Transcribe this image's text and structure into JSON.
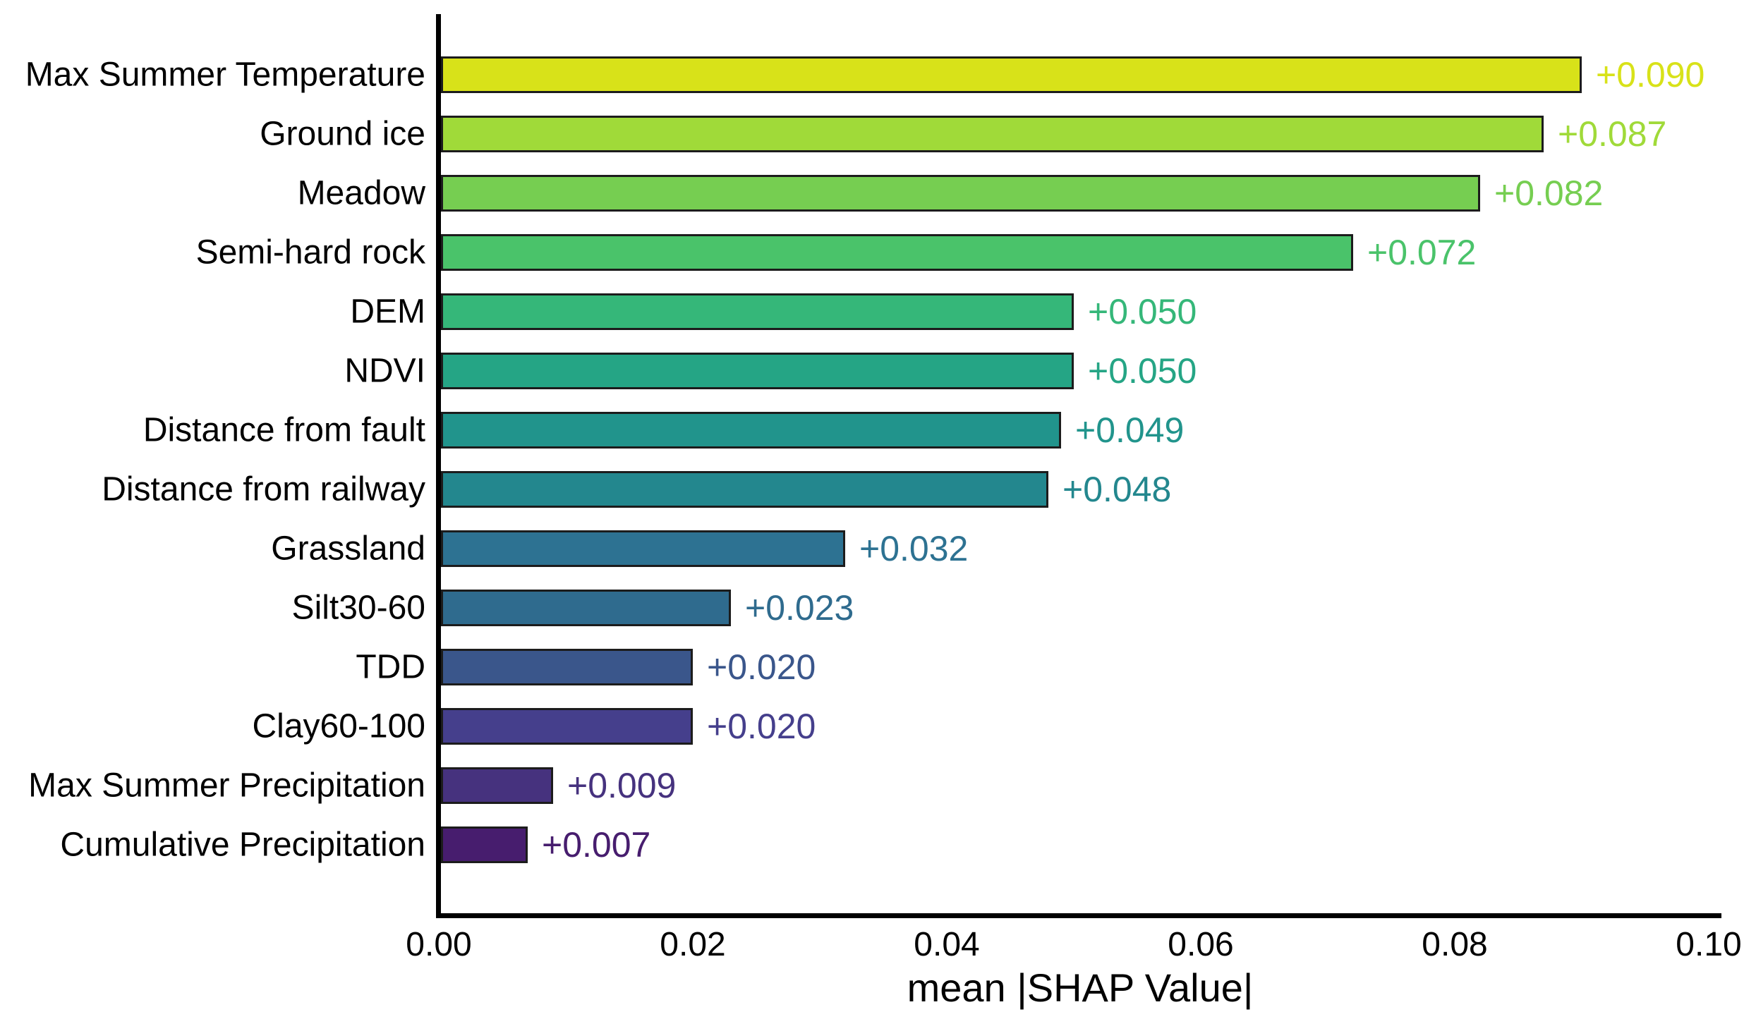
{
  "chart_data": {
    "type": "bar",
    "orientation": "horizontal",
    "title": "",
    "xlabel": "mean |SHAP Value|",
    "ylabel": "",
    "categories": [
      "Max Summer Temperature",
      "Ground ice",
      "Meadow",
      "Semi-hard rock",
      "DEM",
      "NDVI",
      "Distance from fault",
      "Distance from railway",
      "Grassland",
      "Silt30-60",
      "TDD",
      "Clay60-100",
      "Max Summer Precipitation",
      "Cumulative Precipitation"
    ],
    "values": [
      0.09,
      0.087,
      0.082,
      0.072,
      0.05,
      0.05,
      0.049,
      0.048,
      0.032,
      0.023,
      0.02,
      0.02,
      0.009,
      0.007
    ],
    "value_labels": [
      "+0.090",
      "+0.087",
      "+0.082",
      "+0.072",
      "+0.050",
      "+0.050",
      "+0.049",
      "+0.048",
      "+0.032",
      "+0.023",
      "+0.020",
      "+0.020",
      "+0.009",
      "+0.007"
    ],
    "bar_colors": [
      "#d8e219",
      "#a0da39",
      "#76ce51",
      "#4ac36a",
      "#35b779",
      "#25a585",
      "#21948c",
      "#23878e",
      "#2d7292",
      "#2f6b8e",
      "#3a568b",
      "#453f8c",
      "#46327e",
      "#471d6e"
    ],
    "bar_edge_color": "#1c1c1c",
    "x_ticks": [
      0.0,
      0.02,
      0.04,
      0.06,
      0.08,
      0.1
    ],
    "x_tick_labels": [
      "0.00",
      "0.02",
      "0.04",
      "0.06",
      "0.08",
      "0.10"
    ],
    "xlim": [
      0,
      0.101
    ],
    "grid": false,
    "legend": "none"
  }
}
